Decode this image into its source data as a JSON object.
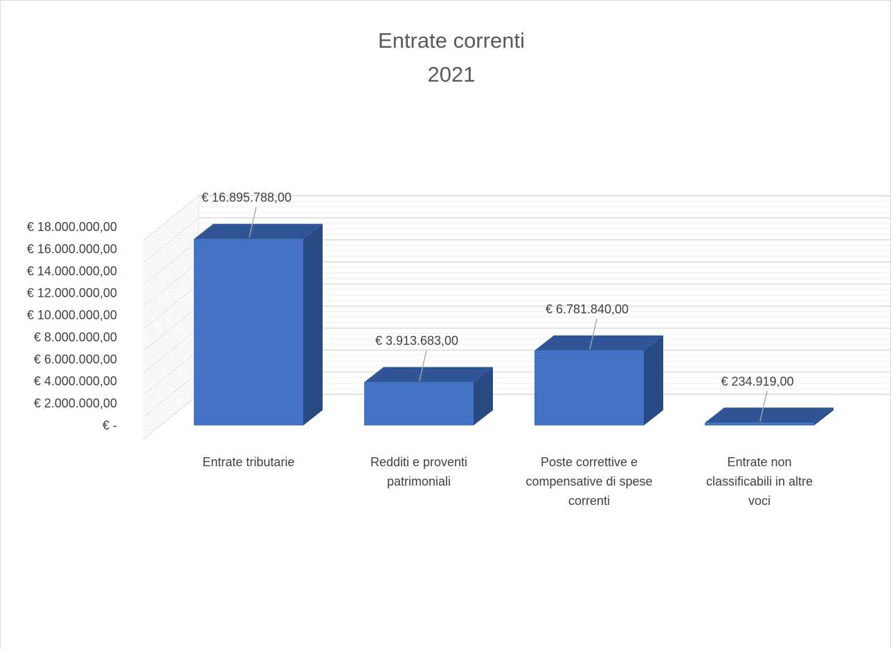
{
  "chart_data": {
    "type": "bar",
    "style": "3d-clustered-column",
    "title": "Entrate correnti",
    "subtitle": "2021",
    "categories": [
      [
        "Entrate tributarie"
      ],
      [
        "Redditi e proventi",
        "patrimoniali"
      ],
      [
        "Poste correttive e",
        "compensative di spese",
        "correnti"
      ],
      [
        "Entrate non",
        "classificabili in altre",
        "voci"
      ]
    ],
    "values": [
      16895788,
      3913683,
      6781840,
      234919
    ],
    "data_labels": [
      "€ 16.895.788,00",
      "€ 3.913.683,00",
      "€ 6.781.840,00",
      "€ 234.919,00"
    ],
    "y_ticks": [
      0,
      2000000,
      4000000,
      6000000,
      8000000,
      10000000,
      12000000,
      14000000,
      16000000,
      18000000
    ],
    "y_tick_labels": [
      "€ -",
      "€ 2.000.000,00",
      "€ 4.000.000,00",
      "€ 6.000.000,00",
      "€ 8.000.000,00",
      "€ 10.000.000,00",
      "€ 12.000.000,00",
      "€ 14.000.000,00",
      "€ 16.000.000,00",
      "€ 18.000.000,00"
    ],
    "ylim": [
      0,
      18000000
    ],
    "grid": true,
    "legend": "none",
    "colors": {
      "front": "#4472c4",
      "top": "#2f5597",
      "side": "#284a85",
      "grid": "#d9d9d9",
      "text": "#404040",
      "title": "#595959",
      "leader": "#a6a6a6"
    }
  }
}
